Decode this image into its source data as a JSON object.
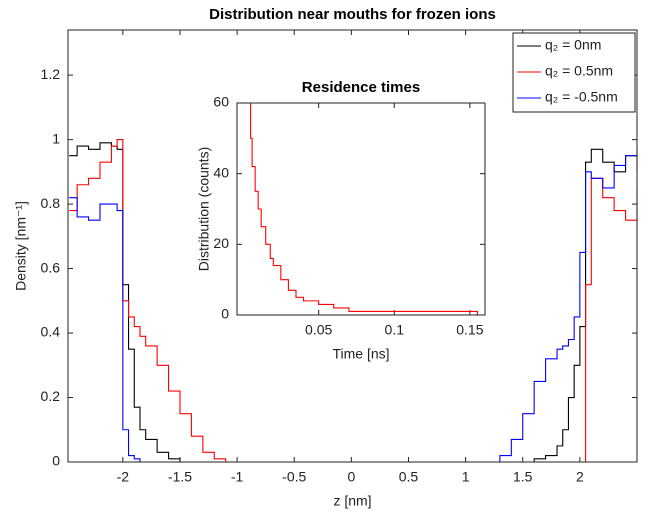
{
  "chart_data": [
    {
      "type": "line",
      "title": "Distribution near mouths for frozen ions",
      "x_label": "z [nm]",
      "y_label": "Density [nm⁻¹]",
      "x": [
        -2.47,
        -2.4,
        -2.3,
        -2.2,
        -2.1,
        -2.05,
        -2.0,
        -1.95,
        -1.9,
        -1.85,
        -1.8,
        -1.7,
        -1.6,
        -1.5,
        -1.4,
        -1.3,
        -1.2,
        -1.1,
        -1.0,
        -0.5,
        0,
        0.5,
        1.0,
        1.1,
        1.2,
        1.3,
        1.4,
        1.5,
        1.6,
        1.7,
        1.8,
        1.85,
        1.9,
        1.95,
        2.0,
        2.05,
        2.1,
        2.2,
        2.3,
        2.4,
        2.5
      ],
      "series": [
        {
          "name": "q₂ = 0nm",
          "color": "#000000",
          "values": [
            0.95,
            0.98,
            0.97,
            0.99,
            0.98,
            0.97,
            0.55,
            0.35,
            0.17,
            0.1,
            0.07,
            0.03,
            0.01,
            0,
            0,
            0,
            0,
            0,
            0,
            0,
            0,
            0,
            0,
            0,
            0,
            0,
            0,
            0,
            0.01,
            0.02,
            0.05,
            0.1,
            0.2,
            0.3,
            0.42,
            0.93,
            0.97,
            0.93,
            0.9,
            0.95,
            0.9
          ]
        },
        {
          "name": "q₂ = 0.5nm",
          "color": "#ff0000",
          "values": [
            0.78,
            0.86,
            0.88,
            0.93,
            0.98,
            1.0,
            0.5,
            0.45,
            0.42,
            0.39,
            0.36,
            0.3,
            0.22,
            0.15,
            0.08,
            0.03,
            0.01,
            0,
            0,
            0,
            0,
            0,
            0,
            0,
            0,
            0,
            0,
            0,
            0,
            0,
            0,
            0,
            0,
            0,
            0,
            0.55,
            0.88,
            0.82,
            0.78,
            0.75,
            0.85
          ]
        },
        {
          "name": "q₂ = -0.5nm",
          "color": "#0000ff",
          "values": [
            0.82,
            0.76,
            0.75,
            0.8,
            0.8,
            0.78,
            0.1,
            0.02,
            0.01,
            0,
            0,
            0,
            0,
            0,
            0,
            0,
            0,
            0,
            0,
            0,
            0,
            0,
            0,
            0,
            0,
            0.02,
            0.07,
            0.15,
            0.25,
            0.32,
            0.35,
            0.36,
            0.38,
            0.45,
            0.65,
            0.9,
            0.88,
            0.85,
            0.92,
            0.95,
            0.97
          ]
        }
      ],
      "xlim": [
        -2.48,
        2.5
      ],
      "ylim": [
        0,
        1.34
      ],
      "xticks": [
        -2,
        -1.5,
        -1,
        -0.5,
        0,
        0.5,
        1,
        1.5,
        2
      ],
      "yticks": [
        0,
        0.2,
        0.4,
        0.6,
        0.8,
        1,
        1.2
      ],
      "legend": "upper right"
    },
    {
      "type": "line",
      "title": "Residence times",
      "x_label": "Time [ns]",
      "y_label": "Distribution (counts)",
      "x": [
        0.004,
        0.005,
        0.006,
        0.008,
        0.01,
        0.012,
        0.015,
        0.018,
        0.02,
        0.025,
        0.03,
        0.035,
        0.04,
        0.05,
        0.06,
        0.07,
        0.08,
        0.1,
        0.12,
        0.14,
        0.155
      ],
      "series": [
        {
          "color": "#ff0000",
          "values": [
            60,
            50,
            42,
            35,
            30,
            25,
            20,
            16,
            14,
            10,
            7,
            5,
            4,
            3,
            2,
            1,
            1,
            1,
            1,
            1,
            0
          ]
        }
      ],
      "xlim": [
        -0.004,
        0.16
      ],
      "ylim": [
        0,
        60
      ],
      "xticks": [
        0.05,
        0.1,
        0.15
      ],
      "yticks": [
        0,
        20,
        40,
        60
      ]
    }
  ]
}
